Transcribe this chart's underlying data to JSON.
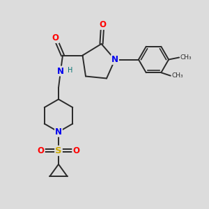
{
  "bg_color": "#dcdcdc",
  "bond_color": "#2a2a2a",
  "bond_width": 1.4,
  "atom_colors": {
    "O": "#ff0000",
    "N": "#0000ee",
    "S": "#ccaa00",
    "C": "#2a2a2a",
    "H": "#007070"
  }
}
